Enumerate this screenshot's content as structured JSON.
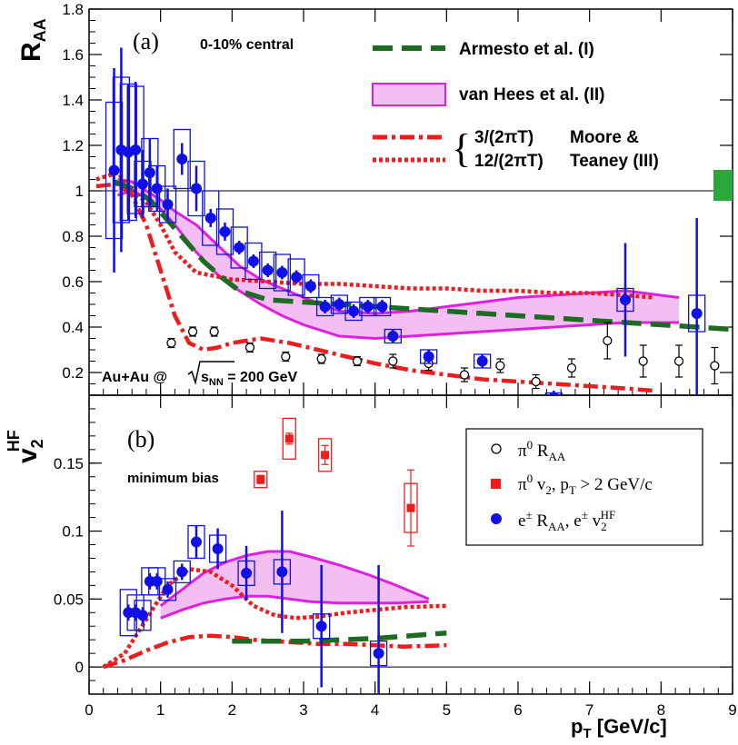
{
  "chart_data": [
    {
      "panel": "a",
      "type": "scatter",
      "panel_label": "(a)",
      "ylabel": "R",
      "ylabel_sub": "AA",
      "ylim": [
        0.1,
        1.8
      ],
      "xlim": [
        0,
        9
      ],
      "yticks": [
        "0.2",
        "0.4",
        "0.6",
        "0.8",
        "1",
        "1.2",
        "1.4",
        "1.6",
        "1.8"
      ],
      "annotation_centrality": "0-10% central",
      "annotation_system_pre": "Au+Au @ ",
      "annotation_system_sqrt": "s",
      "annotation_system_sub": "NN",
      "annotation_system_post": " = 200 GeV",
      "reference_line": 1,
      "legend": {
        "armesto": "Armesto et al. (I)",
        "vanhees": "van Hees et al. (II)",
        "moore_3": "3/(2πT)",
        "moore_12": "12/(2πT)",
        "moore_name_1": "Moore &",
        "moore_name_2": "Teaney (III)"
      },
      "series": [
        {
          "key": "pi0",
          "points": [
            {
              "x": 1.15,
              "y": 0.33,
              "err": 0.02
            },
            {
              "x": 1.45,
              "y": 0.38,
              "err": 0.02
            },
            {
              "x": 1.75,
              "y": 0.38,
              "err": 0.02
            },
            {
              "x": 2.25,
              "y": 0.31,
              "err": 0.02
            },
            {
              "x": 2.75,
              "y": 0.27,
              "err": 0.02
            },
            {
              "x": 3.25,
              "y": 0.26,
              "err": 0.02
            },
            {
              "x": 3.75,
              "y": 0.25,
              "err": 0.02
            },
            {
              "x": 4.25,
              "y": 0.25,
              "err": 0.03
            },
            {
              "x": 4.75,
              "y": 0.24,
              "err": 0.03
            },
            {
              "x": 5.25,
              "y": 0.19,
              "err": 0.03
            },
            {
              "x": 5.75,
              "y": 0.23,
              "err": 0.03
            },
            {
              "x": 6.25,
              "y": 0.16,
              "err": 0.03
            },
            {
              "x": 6.75,
              "y": 0.22,
              "err": 0.04
            },
            {
              "x": 7.25,
              "y": 0.34,
              "err": 0.08
            },
            {
              "x": 7.75,
              "y": 0.25,
              "err": 0.07
            },
            {
              "x": 8.25,
              "y": 0.25,
              "err": 0.07
            },
            {
              "x": 8.75,
              "y": 0.23,
              "err": 0.08
            }
          ]
        },
        {
          "key": "electrons",
          "points": [
            {
              "x": 0.35,
              "y": 1.09,
              "err": 0.45,
              "sys": 0.3
            },
            {
              "x": 0.45,
              "y": 1.18,
              "err": 0.45,
              "sys": 0.32
            },
            {
              "x": 0.55,
              "y": 1.17,
              "err": 0.3,
              "sys": 0.3
            },
            {
              "x": 0.65,
              "y": 1.18,
              "err": 0.3,
              "sys": 0.28
            },
            {
              "x": 0.75,
              "y": 1.03,
              "err": 0.15,
              "sys": 0.1
            },
            {
              "x": 0.85,
              "y": 1.08,
              "err": 0.15,
              "sys": 0.15
            },
            {
              "x": 0.95,
              "y": 1.01,
              "err": 0.1,
              "sys": 0.1
            },
            {
              "x": 1.1,
              "y": 0.94,
              "err": 0.07,
              "sys": 0.08
            },
            {
              "x": 1.3,
              "y": 1.14,
              "err": 0.07,
              "sys": 0.13
            },
            {
              "x": 1.5,
              "y": 1.01,
              "err": 0.1,
              "sys": 0.12
            },
            {
              "x": 1.7,
              "y": 0.88,
              "err": 0.04,
              "sys": 0.12
            },
            {
              "x": 1.9,
              "y": 0.82,
              "err": 0.04,
              "sys": 0.1
            },
            {
              "x": 2.1,
              "y": 0.75,
              "err": 0.03,
              "sys": 0.09
            },
            {
              "x": 2.3,
              "y": 0.69,
              "err": 0.03,
              "sys": 0.08
            },
            {
              "x": 2.5,
              "y": 0.65,
              "err": 0.03,
              "sys": 0.08
            },
            {
              "x": 2.7,
              "y": 0.64,
              "err": 0.03,
              "sys": 0.08
            },
            {
              "x": 2.9,
              "y": 0.62,
              "err": 0.03,
              "sys": 0.08
            },
            {
              "x": 3.1,
              "y": 0.58,
              "err": 0.03,
              "sys": 0.05
            },
            {
              "x": 3.3,
              "y": 0.49,
              "err": 0.03,
              "sys": 0.04
            },
            {
              "x": 3.5,
              "y": 0.5,
              "err": 0.03,
              "sys": 0.04
            },
            {
              "x": 3.7,
              "y": 0.47,
              "err": 0.03,
              "sys": 0.04
            },
            {
              "x": 3.9,
              "y": 0.49,
              "err": 0.03,
              "sys": 0.04
            },
            {
              "x": 4.1,
              "y": 0.49,
              "err": 0.03,
              "sys": 0.04
            },
            {
              "x": 4.25,
              "y": 0.36,
              "err": 0.03,
              "sys": 0.03
            },
            {
              "x": 4.75,
              "y": 0.27,
              "err": 0.03,
              "sys": 0.03
            },
            {
              "x": 5.5,
              "y": 0.25,
              "err": 0.03,
              "sys": 0.03
            },
            {
              "x": 6.5,
              "y": 0.09,
              "err": 0.03,
              "sys": 0.02
            },
            {
              "x": 7.5,
              "y": 0.52,
              "err": 0.25,
              "sys": 0.05
            },
            {
              "x": 8.5,
              "y": 0.46,
              "err": 0.42,
              "sys": 0.08
            }
          ]
        }
      ],
      "models": {
        "armesto": {
          "x": [
            0.35,
            0.6,
            0.85,
            1.1,
            1.35,
            1.6,
            1.85,
            2.1,
            2.5,
            3,
            3.5,
            4,
            4.5,
            5,
            5.5,
            6,
            6.5,
            7,
            7.5,
            8,
            8.5,
            9
          ],
          "y": [
            1.04,
            1.01,
            0.96,
            0.87,
            0.78,
            0.69,
            0.62,
            0.56,
            0.52,
            0.51,
            0.5,
            0.49,
            0.48,
            0.47,
            0.46,
            0.45,
            0.44,
            0.43,
            0.42,
            0.41,
            0.4,
            0.39
          ]
        },
        "vanhees_upper": {
          "x": [
            0.4,
            0.6,
            0.8,
            1.0,
            1.2,
            1.5,
            1.8,
            2.1,
            2.4,
            2.7,
            3.0,
            3.5,
            4.0,
            4.5,
            5.0,
            5.5,
            6.0,
            6.5,
            7.0,
            7.5,
            8.0,
            8.25
          ],
          "y": [
            1.05,
            1.04,
            1.0,
            0.96,
            0.91,
            0.85,
            0.76,
            0.67,
            0.61,
            0.57,
            0.53,
            0.47,
            0.46,
            0.47,
            0.49,
            0.51,
            0.53,
            0.54,
            0.55,
            0.56,
            0.54,
            0.53
          ]
        },
        "vanhees_lower": {
          "x": [
            0.4,
            0.6,
            0.8,
            1.0,
            1.2,
            1.5,
            1.8,
            2.1,
            2.4,
            2.7,
            3.0,
            3.5,
            4.0,
            4.5,
            5.0,
            5.5,
            6.0,
            6.5,
            7.0,
            7.5,
            8.0,
            8.25
          ],
          "y": [
            0.98,
            1.0,
            0.97,
            0.92,
            0.85,
            0.73,
            0.63,
            0.56,
            0.5,
            0.45,
            0.41,
            0.36,
            0.35,
            0.36,
            0.37,
            0.38,
            0.39,
            0.4,
            0.41,
            0.42,
            0.42,
            0.42
          ]
        },
        "moore_3": {
          "x": [
            0.1,
            0.4,
            0.6,
            0.8,
            1.0,
            1.2,
            1.5,
            2.0,
            2.5,
            3.0,
            3.5,
            4.0,
            4.5,
            5.0,
            5.5,
            6.0,
            6.5,
            7.0,
            7.5,
            7.9
          ],
          "y": [
            1.05,
            1.08,
            1.0,
            0.95,
            0.85,
            0.73,
            0.64,
            0.61,
            0.6,
            0.59,
            0.59,
            0.58,
            0.57,
            0.57,
            0.56,
            0.56,
            0.55,
            0.55,
            0.54,
            0.53
          ]
        },
        "moore_12": {
          "x": [
            0.1,
            0.4,
            0.6,
            0.8,
            1.0,
            1.2,
            1.4,
            1.6,
            1.8,
            2.0,
            2.4,
            2.8,
            3.2,
            3.6,
            4.0,
            4.5,
            5.0,
            5.5,
            6.0,
            6.5,
            7.0,
            7.5,
            7.9
          ],
          "y": [
            1.02,
            1.03,
            0.98,
            0.85,
            0.65,
            0.45,
            0.33,
            0.3,
            0.31,
            0.33,
            0.35,
            0.33,
            0.3,
            0.27,
            0.24,
            0.21,
            0.19,
            0.17,
            0.16,
            0.15,
            0.14,
            0.13,
            0.12
          ]
        }
      }
    },
    {
      "panel": "b",
      "type": "scatter",
      "panel_label": "(b)",
      "ylabel": "v",
      "ylabel_sub": "2",
      "ylabel_sup": "HF",
      "xlabel": "p",
      "xlabel_sub": "T",
      "xlabel_unit": " [GeV/c]",
      "xlim": [
        0,
        9
      ],
      "ylim": [
        -0.02,
        0.2
      ],
      "yticks": [
        "0",
        "0.05",
        "0.1",
        "0.15"
      ],
      "xticks": [
        "0",
        "1",
        "2",
        "3",
        "4",
        "5",
        "6",
        "7",
        "8",
        "9"
      ],
      "annotation": "minimum bias",
      "reference_line": 0,
      "legend": {
        "pi0_raa_pre": "π",
        "pi0_raa_sup": "0",
        "pi0_raa_post": " R",
        "pi0_raa_sub": "AA",
        "pi0_v2_pre": "π",
        "pi0_v2_sup": "0",
        "pi0_v2_mid": " v",
        "pi0_v2_sub": "2",
        "pi0_v2_post": ", p",
        "pi0_v2_sub2": "T",
        "pi0_v2_tail": " > 2 GeV/c",
        "e_pre": "e",
        "e_sup": "±",
        "e_mid": " R",
        "e_sub": "AA",
        "e_mid2": ", e",
        "e_sup2": "±",
        "e_v": " v",
        "e_sub3": "2",
        "e_sup3": "HF"
      },
      "series": [
        {
          "key": "pi0_v2",
          "points": [
            {
              "x": 2.4,
              "y": 0.138,
              "err": 0.003,
              "sys": 0.006
            },
            {
              "x": 2.8,
              "y": 0.168,
              "err": 0.004,
              "sys": 0.015
            },
            {
              "x": 3.3,
              "y": 0.156,
              "err": 0.007,
              "sys": 0.012
            },
            {
              "x": 4.5,
              "y": 0.117,
              "err": 0.028,
              "sys": 0.018
            }
          ]
        },
        {
          "key": "electrons_v2",
          "points": [
            {
              "x": 0.55,
              "y": 0.04,
              "err": 0.006,
              "sys": 0.017
            },
            {
              "x": 0.65,
              "y": 0.04,
              "err": 0.006,
              "sys": 0.013
            },
            {
              "x": 0.75,
              "y": 0.038,
              "err": 0.006,
              "sys": 0.011
            },
            {
              "x": 0.85,
              "y": 0.063,
              "err": 0.006,
              "sys": 0.01
            },
            {
              "x": 0.95,
              "y": 0.063,
              "err": 0.006,
              "sys": 0.01
            },
            {
              "x": 1.1,
              "y": 0.057,
              "err": 0.006,
              "sys": 0.008
            },
            {
              "x": 1.3,
              "y": 0.07,
              "err": 0.006,
              "sys": 0.008
            },
            {
              "x": 1.5,
              "y": 0.092,
              "err": 0.012,
              "sys": 0.012
            },
            {
              "x": 1.8,
              "y": 0.087,
              "err": 0.015,
              "sys": 0.01
            },
            {
              "x": 2.2,
              "y": 0.069,
              "err": 0.02,
              "sys": 0.009
            },
            {
              "x": 2.7,
              "y": 0.07,
              "err": 0.045,
              "sys": 0.009
            },
            {
              "x": 3.25,
              "y": 0.03,
              "err": 0.045,
              "sys": 0.009
            },
            {
              "x": 4.05,
              "y": 0.01,
              "err": 0.065,
              "sys": 0.009
            }
          ]
        }
      ],
      "models": {
        "armesto": {
          "x": [
            2,
            2.5,
            3,
            3.5,
            4,
            4.5,
            5
          ],
          "y": [
            0.019,
            0.019,
            0.019,
            0.02,
            0.021,
            0.023,
            0.025
          ]
        },
        "vanhees_upper": {
          "x": [
            1.0,
            1.3,
            1.6,
            1.9,
            2.2,
            2.5,
            2.8,
            3.1,
            3.5,
            3.9,
            4.3,
            4.75
          ],
          "y": [
            0.045,
            0.057,
            0.069,
            0.077,
            0.082,
            0.085,
            0.085,
            0.081,
            0.075,
            0.068,
            0.06,
            0.05
          ]
        },
        "vanhees_lower": {
          "x": [
            1.0,
            1.3,
            1.6,
            1.9,
            2.2,
            2.5,
            2.8,
            3.1,
            3.5,
            3.9,
            4.3,
            4.75
          ],
          "y": [
            0.036,
            0.042,
            0.047,
            0.05,
            0.052,
            0.052,
            0.05,
            0.048,
            0.047,
            0.047,
            0.047,
            0.048
          ]
        },
        "moore_3": {
          "x": [
            0.2,
            0.5,
            0.8,
            1.1,
            1.4,
            1.7,
            2.0,
            2.3,
            2.6,
            2.9,
            3.2,
            3.6,
            4.0,
            4.4,
            5.0
          ],
          "y": [
            0.0,
            0.01,
            0.035,
            0.06,
            0.072,
            0.07,
            0.06,
            0.045,
            0.038,
            0.036,
            0.037,
            0.04,
            0.042,
            0.044,
            0.045
          ]
        },
        "moore_12": {
          "x": [
            0.2,
            0.5,
            0.8,
            1.1,
            1.4,
            1.7,
            2.0,
            2.3,
            2.6,
            2.9,
            3.2,
            3.6,
            4.0,
            4.4,
            5.0
          ],
          "y": [
            0.0,
            0.005,
            0.012,
            0.018,
            0.022,
            0.023,
            0.022,
            0.02,
            0.019,
            0.018,
            0.017,
            0.017,
            0.016,
            0.015,
            0.016
          ]
        }
      }
    }
  ],
  "colors": {
    "armesto": "#1e6b24",
    "vanhees_line": "#e020e0",
    "vanhees_fill": "#f3bff3",
    "moore": "#ee1c1c",
    "electrons": "#1010e6",
    "pi0_v2": "#ee1c1c",
    "norm_box": "#2aa83a"
  }
}
